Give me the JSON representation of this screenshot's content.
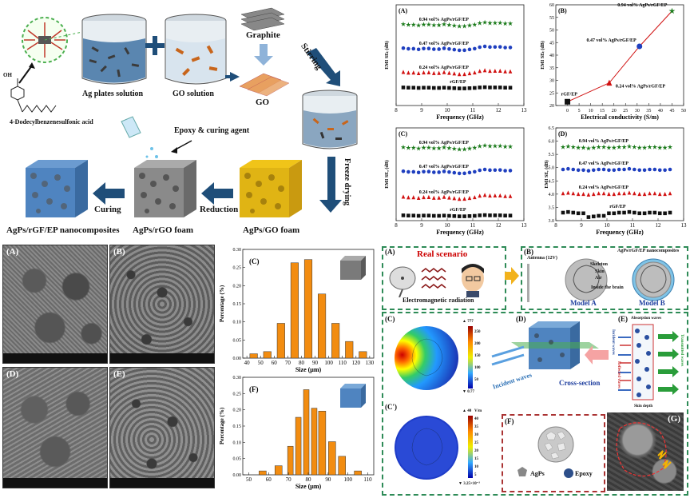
{
  "schematic": {
    "molecule_label": "4-Dodecylbenzenesulfonic acid",
    "molecule_group": "OH",
    "ag_solution": "Ag plates solution",
    "go_solution": "GO solution",
    "graphite": "Graphite",
    "go": "GO",
    "stirring": "Stirring",
    "freeze_drying": "Freeze drying",
    "epoxy": "Epoxy & curing agent",
    "curing": "Curing",
    "reduction": "Reduction",
    "nanocomposites": "AgPs/rGF/EP nanocomposites",
    "agps_rgo_foam": "AgPs/rGO foam",
    "agps_go_foam": "AgPs/GO foam"
  },
  "emi_charts": {
    "A": {
      "label": "(A)",
      "ylabel": "EMI SEₜ (dB)",
      "xlabel": "Frequency (GHz)",
      "xticks": [
        "8",
        "9",
        "10",
        "11",
        "12",
        "13"
      ],
      "series": [
        {
          "name": "0.94 vol% AgPs/rGF/EP",
          "color": "#1a7a1a",
          "marker": "star",
          "y": 55.5
        },
        {
          "name": "0.47 vol% AgPs/rGF/EP",
          "color": "#1f3fbf",
          "marker": "circle",
          "y": 41
        },
        {
          "name": "0.24 vol% AgPs/rGF/EP",
          "color": "#d01010",
          "marker": "triangle",
          "y": 27
        },
        {
          "name": "rGF/EP",
          "color": "#111111",
          "marker": "square",
          "y": 19
        }
      ]
    },
    "B": {
      "label": "(B)",
      "ylabel": "EMI SEₜ (dB)",
      "xlabel": "Electrical conductivity (S/m)",
      "xticks": [
        "0",
        "5",
        "10",
        "15",
        "20",
        "25",
        "30",
        "35",
        "40",
        "45",
        "50"
      ],
      "yticks": [
        "20",
        "25",
        "30",
        "35",
        "40",
        "45",
        "50",
        "55",
        "60"
      ],
      "points": [
        {
          "name": "rGF/EP",
          "x": 0,
          "y": 21.5,
          "color": "#111111",
          "marker": "square"
        },
        {
          "name": "0.24 vol% AgPs/rGF/EP",
          "x": 18,
          "y": 29,
          "color": "#d01010",
          "marker": "triangle"
        },
        {
          "name": "0.47 vol% AgPs/rGF/EP",
          "x": 31,
          "y": 43.5,
          "color": "#1f3fbf",
          "marker": "circle"
        },
        {
          "name": "0.94 vol% AgPs/rGF/EP",
          "x": 45,
          "y": 57.5,
          "color": "#1a7a1a",
          "marker": "star"
        }
      ]
    },
    "C": {
      "label": "(C)",
      "ylabel": "EMI SEₐ (dB)",
      "xlabel": "Frequency (GHz)",
      "xticks": [
        "8",
        "9",
        "10",
        "11",
        "12",
        "13"
      ],
      "series": [
        {
          "name": "0.94 vol% AgPs/rGF/EP",
          "color": "#1a7a1a",
          "marker": "star"
        },
        {
          "name": "0.47 vol% AgPs/rGF/EP",
          "color": "#1f3fbf",
          "marker": "circle"
        },
        {
          "name": "0.24 vol% AgPs/rGF/EP",
          "color": "#d01010",
          "marker": "triangle"
        },
        {
          "name": "rGF/EP",
          "color": "#111111",
          "marker": "square"
        }
      ]
    },
    "D": {
      "label": "(D)",
      "ylabel": "EMI SEᵣ (dB)",
      "xlabel": "Frequency (GHz)",
      "xticks": [
        "8",
        "9",
        "10",
        "11",
        "12",
        "13"
      ],
      "yticks": [
        "3.0",
        "3.5",
        "4.0",
        "4.5",
        "5.0",
        "5.5",
        "6.0",
        "6.5"
      ],
      "series": [
        {
          "name": "0.94 vol% AgPs/rGF/EP",
          "color": "#1a7a1a",
          "marker": "star"
        },
        {
          "name": "0.47 vol% AgPs/rGF/EP",
          "color": "#1f3fbf",
          "marker": "circle"
        },
        {
          "name": "0.24 vol% AgPs/rGF/EP",
          "color": "#d01010",
          "marker": "triangle"
        },
        {
          "name": "rGF/EP",
          "color": "#111111",
          "marker": "square"
        }
      ]
    }
  },
  "sem": {
    "A": "(A)",
    "B": "(B)",
    "D": "(D)",
    "E": "(E)"
  },
  "chart_data": [
    {
      "type": "bar",
      "label": "(C)",
      "xlabel": "Size (μm)",
      "ylabel": "Percentage (%)",
      "xlim": [
        37,
        133
      ],
      "ylim": [
        0,
        0.3
      ],
      "xticks": [
        "40",
        "50",
        "60",
        "70",
        "80",
        "90",
        "100",
        "110",
        "120",
        "130"
      ],
      "yticks": [
        "0.00",
        "0.05",
        "0.10",
        "0.15",
        "0.20",
        "0.25",
        "0.30"
      ],
      "x": [
        45,
        55,
        65,
        75,
        85,
        95,
        105,
        115,
        125
      ],
      "values": [
        0.012,
        0.018,
        0.096,
        0.263,
        0.272,
        0.177,
        0.096,
        0.046,
        0.018
      ],
      "color": "#f28c10"
    },
    {
      "type": "bar",
      "label": "(F)",
      "xlabel": "Size (μm)",
      "ylabel": "Percentage (%)",
      "xlim": [
        47,
        113
      ],
      "ylim": [
        0,
        0.3
      ],
      "xticks": [
        "50",
        "60",
        "70",
        "80",
        "90",
        "100",
        "110"
      ],
      "yticks": [
        "0.00",
        "0.05",
        "0.10",
        "0.15",
        "0.20",
        "0.25",
        "0.30"
      ],
      "x": [
        57,
        65,
        71,
        75,
        79,
        83,
        87,
        92,
        97,
        105
      ],
      "values": [
        0.012,
        0.028,
        0.088,
        0.177,
        0.262,
        0.205,
        0.196,
        0.102,
        0.057,
        0.012
      ],
      "color": "#f28c10"
    }
  ],
  "sim": {
    "A_label": "(A)",
    "real_scenario": "Real scenario",
    "em_radiation": "Electromagnetic radiation",
    "B_label": "(B)",
    "antenna": "Antenna (12V)",
    "agps_nano": "AgPs/rGF/EP nanocomposites",
    "skeleton": "Skeleton",
    "skin": "Skin",
    "air": "Air",
    "inside_brain": "Inside the brain",
    "model_a": "Model  A",
    "model_b": "Model  B",
    "C_label": "(C)",
    "Cp_label": "(C')",
    "D_label": "(D)",
    "E_label": "(E)",
    "F_label": "(F)",
    "G_label": "(G)",
    "incident_waves": "Incident waves",
    "cross_section": "Cross-section",
    "absorption_waves": "Absorption waves",
    "skin_depth": "Skin depth",
    "transmitted_waves": "Transmitted waves",
    "incident_waves_v": "Incident waves",
    "reflected_waves": "Reflected waves",
    "agps": "AgPs",
    "epoxy": "Epoxy",
    "cb_c_top": "▲ 777",
    "cb_c_vals": [
      "250",
      "200",
      "150",
      "100",
      "50"
    ],
    "cb_c_bot": "▼ 0.77",
    "cb_cp_top": "▲ 40",
    "cb_cp_unit": "V/m",
    "cb_cp_vals": [
      "40",
      "35",
      "30",
      "25",
      "20",
      "15",
      "10",
      "5"
    ],
    "cb_cp_bot": "▼ 3.25×10⁻³"
  }
}
